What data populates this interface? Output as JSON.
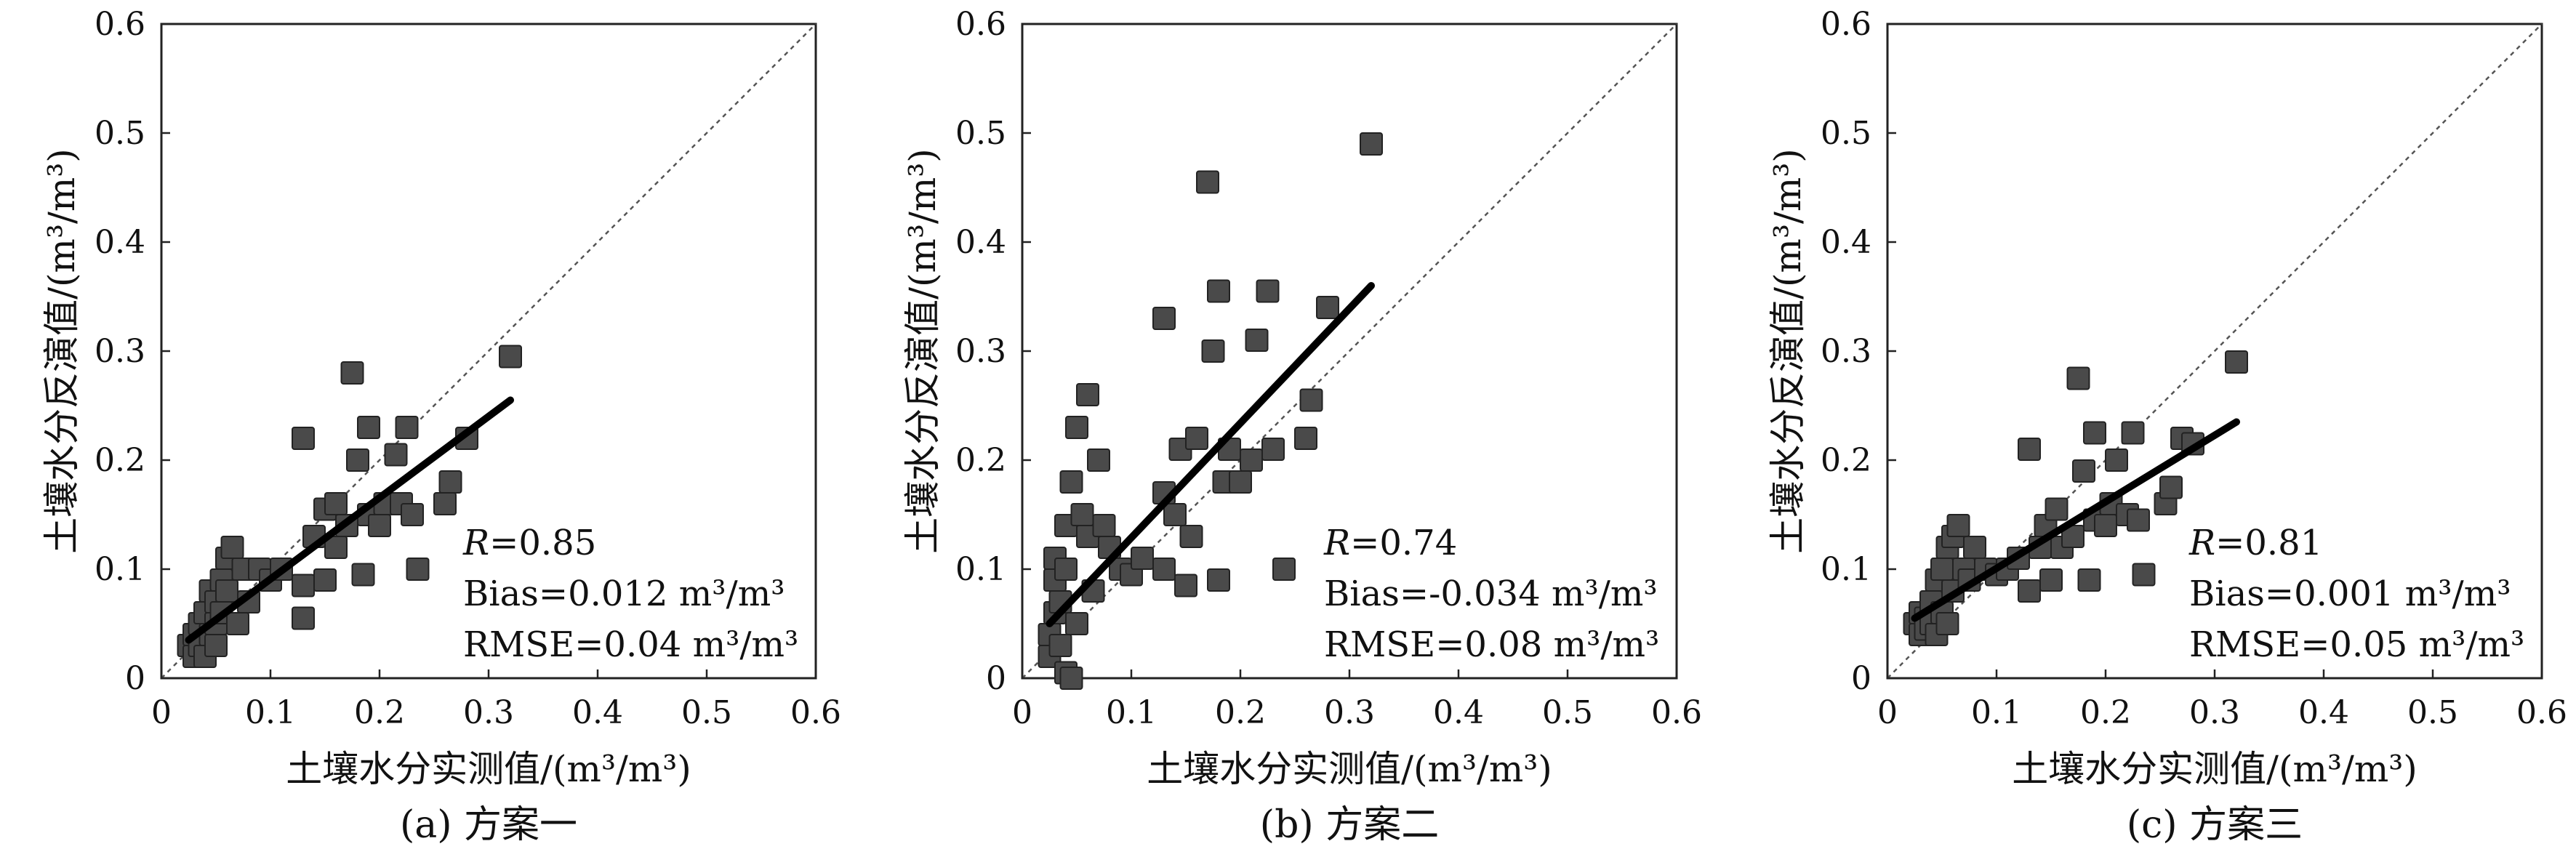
{
  "chart_data": [
    {
      "type": "scatter",
      "caption": "(a) 方案一",
      "xlabel": "土壤水分实测值/(m³/m³)",
      "ylabel": "土壤水分反演值/(m³/m³)",
      "xlim": [
        0,
        0.6
      ],
      "ylim": [
        0,
        0.6
      ],
      "xticks": [
        "0",
        "0.1",
        "0.2",
        "0.3",
        "0.4",
        "0.5",
        "0.6"
      ],
      "yticks": [
        "0",
        "0.1",
        "0.2",
        "0.3",
        "0.4",
        "0.5",
        "0.6"
      ],
      "one_to_one_line": true,
      "fit_line": {
        "x": [
          0.025,
          0.32
        ],
        "y": [
          0.035,
          0.255
        ]
      },
      "stats": {
        "r_label": "R",
        "r_value": "=0.85",
        "bias": "Bias=0.012 m³/m³",
        "rmse": "RMSE=0.04 m³/m³"
      },
      "points": [
        [
          0.025,
          0.03
        ],
        [
          0.03,
          0.02
        ],
        [
          0.03,
          0.04
        ],
        [
          0.035,
          0.05
        ],
        [
          0.035,
          0.03
        ],
        [
          0.04,
          0.06
        ],
        [
          0.04,
          0.02
        ],
        [
          0.045,
          0.08
        ],
        [
          0.045,
          0.04
        ],
        [
          0.05,
          0.07
        ],
        [
          0.05,
          0.05
        ],
        [
          0.05,
          0.03
        ],
        [
          0.055,
          0.09
        ],
        [
          0.055,
          0.06
        ],
        [
          0.06,
          0.11
        ],
        [
          0.06,
          0.08
        ],
        [
          0.065,
          0.12
        ],
        [
          0.07,
          0.05
        ],
        [
          0.075,
          0.1
        ],
        [
          0.08,
          0.07
        ],
        [
          0.09,
          0.1
        ],
        [
          0.1,
          0.09
        ],
        [
          0.11,
          0.1
        ],
        [
          0.13,
          0.22
        ],
        [
          0.13,
          0.055
        ],
        [
          0.13,
          0.085
        ],
        [
          0.14,
          0.13
        ],
        [
          0.15,
          0.09
        ],
        [
          0.15,
          0.155
        ],
        [
          0.16,
          0.12
        ],
        [
          0.16,
          0.16
        ],
        [
          0.17,
          0.14
        ],
        [
          0.175,
          0.28
        ],
        [
          0.18,
          0.2
        ],
        [
          0.185,
          0.095
        ],
        [
          0.19,
          0.23
        ],
        [
          0.19,
          0.15
        ],
        [
          0.2,
          0.14
        ],
        [
          0.205,
          0.16
        ],
        [
          0.215,
          0.205
        ],
        [
          0.22,
          0.16
        ],
        [
          0.225,
          0.23
        ],
        [
          0.23,
          0.15
        ],
        [
          0.235,
          0.1
        ],
        [
          0.26,
          0.16
        ],
        [
          0.265,
          0.18
        ],
        [
          0.28,
          0.22
        ],
        [
          0.32,
          0.295
        ]
      ]
    },
    {
      "type": "scatter",
      "caption": "(b) 方案二",
      "xlabel": "土壤水分实测值/(m³/m³)",
      "ylabel": "土壤水分反演值/(m³/m³)",
      "xlim": [
        0,
        0.6
      ],
      "ylim": [
        0,
        0.6
      ],
      "xticks": [
        "0",
        "0.1",
        "0.2",
        "0.3",
        "0.4",
        "0.5",
        "0.6"
      ],
      "yticks": [
        "0",
        "0.1",
        "0.2",
        "0.3",
        "0.4",
        "0.5",
        "0.6"
      ],
      "one_to_one_line": true,
      "fit_line": {
        "x": [
          0.025,
          0.32
        ],
        "y": [
          0.05,
          0.36
        ]
      },
      "stats": {
        "r_label": "R",
        "r_value": "=0.74",
        "bias": "Bias=-0.034 m³/m³",
        "rmse": "RMSE=0.08 m³/m³"
      },
      "points": [
        [
          0.025,
          0.02
        ],
        [
          0.025,
          0.04
        ],
        [
          0.03,
          0.06
        ],
        [
          0.03,
          0.09
        ],
        [
          0.03,
          0.11
        ],
        [
          0.035,
          0.03
        ],
        [
          0.035,
          0.07
        ],
        [
          0.04,
          0.14
        ],
        [
          0.04,
          0.005
        ],
        [
          0.04,
          0.1
        ],
        [
          0.045,
          0.18
        ],
        [
          0.045,
          0.0
        ],
        [
          0.05,
          0.23
        ],
        [
          0.05,
          0.05
        ],
        [
          0.055,
          0.15
        ],
        [
          0.06,
          0.26
        ],
        [
          0.06,
          0.13
        ],
        [
          0.065,
          0.08
        ],
        [
          0.07,
          0.2
        ],
        [
          0.075,
          0.14
        ],
        [
          0.08,
          0.12
        ],
        [
          0.09,
          0.1
        ],
        [
          0.1,
          0.095
        ],
        [
          0.11,
          0.11
        ],
        [
          0.13,
          0.33
        ],
        [
          0.13,
          0.17
        ],
        [
          0.13,
          0.1
        ],
        [
          0.14,
          0.15
        ],
        [
          0.145,
          0.21
        ],
        [
          0.15,
          0.085
        ],
        [
          0.155,
          0.13
        ],
        [
          0.16,
          0.22
        ],
        [
          0.17,
          0.455
        ],
        [
          0.175,
          0.3
        ],
        [
          0.18,
          0.355
        ],
        [
          0.18,
          0.09
        ],
        [
          0.185,
          0.18
        ],
        [
          0.19,
          0.21
        ],
        [
          0.2,
          0.18
        ],
        [
          0.21,
          0.2
        ],
        [
          0.215,
          0.31
        ],
        [
          0.225,
          0.355
        ],
        [
          0.23,
          0.21
        ],
        [
          0.24,
          0.1
        ],
        [
          0.26,
          0.22
        ],
        [
          0.265,
          0.255
        ],
        [
          0.28,
          0.34
        ],
        [
          0.32,
          0.49
        ]
      ]
    },
    {
      "type": "scatter",
      "caption": "(c) 方案三",
      "xlabel": "土壤水分实测值/(m³/m³)",
      "ylabel": "土壤水分反演值/(m³/m³)",
      "xlim": [
        0,
        0.6
      ],
      "ylim": [
        0,
        0.6
      ],
      "xticks": [
        "0",
        "0.1",
        "0.2",
        "0.3",
        "0.4",
        "0.5",
        "0.6"
      ],
      "yticks": [
        "0",
        "0.1",
        "0.2",
        "0.3",
        "0.4",
        "0.5",
        "0.6"
      ],
      "one_to_one_line": true,
      "fit_line": {
        "x": [
          0.025,
          0.32
        ],
        "y": [
          0.055,
          0.235
        ]
      },
      "stats": {
        "r_label": "R",
        "r_value": "=0.81",
        "bias": "Bias=0.001 m³/m³",
        "rmse": "RMSE=0.05 m³/m³"
      },
      "points": [
        [
          0.025,
          0.05
        ],
        [
          0.03,
          0.04
        ],
        [
          0.03,
          0.06
        ],
        [
          0.035,
          0.055
        ],
        [
          0.035,
          0.045
        ],
        [
          0.04,
          0.07
        ],
        [
          0.04,
          0.05
        ],
        [
          0.045,
          0.09
        ],
        [
          0.045,
          0.04
        ],
        [
          0.05,
          0.1
        ],
        [
          0.05,
          0.06
        ],
        [
          0.055,
          0.12
        ],
        [
          0.055,
          0.05
        ],
        [
          0.06,
          0.13
        ],
        [
          0.06,
          0.08
        ],
        [
          0.065,
          0.14
        ],
        [
          0.07,
          0.1
        ],
        [
          0.075,
          0.09
        ],
        [
          0.08,
          0.12
        ],
        [
          0.09,
          0.1
        ],
        [
          0.1,
          0.095
        ],
        [
          0.11,
          0.1
        ],
        [
          0.12,
          0.11
        ],
        [
          0.13,
          0.21
        ],
        [
          0.13,
          0.08
        ],
        [
          0.14,
          0.12
        ],
        [
          0.145,
          0.14
        ],
        [
          0.15,
          0.09
        ],
        [
          0.155,
          0.155
        ],
        [
          0.16,
          0.12
        ],
        [
          0.17,
          0.13
        ],
        [
          0.175,
          0.275
        ],
        [
          0.18,
          0.19
        ],
        [
          0.185,
          0.09
        ],
        [
          0.19,
          0.225
        ],
        [
          0.19,
          0.145
        ],
        [
          0.2,
          0.14
        ],
        [
          0.205,
          0.16
        ],
        [
          0.21,
          0.2
        ],
        [
          0.22,
          0.15
        ],
        [
          0.225,
          0.225
        ],
        [
          0.23,
          0.145
        ],
        [
          0.235,
          0.095
        ],
        [
          0.255,
          0.16
        ],
        [
          0.26,
          0.175
        ],
        [
          0.27,
          0.22
        ],
        [
          0.28,
          0.215
        ],
        [
          0.32,
          0.29
        ]
      ]
    }
  ]
}
